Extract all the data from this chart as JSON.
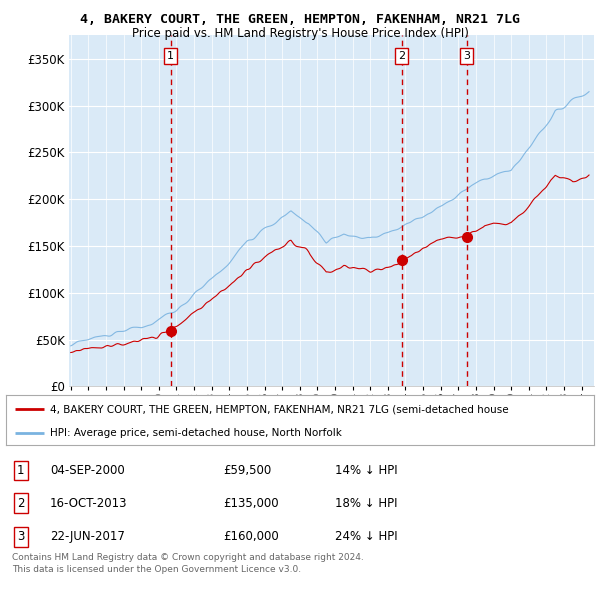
{
  "title": "4, BAKERY COURT, THE GREEN, HEMPTON, FAKENHAM, NR21 7LG",
  "subtitle": "Price paid vs. HM Land Registry's House Price Index (HPI)",
  "ylim": [
    0,
    375000
  ],
  "yticks": [
    0,
    50000,
    100000,
    150000,
    200000,
    250000,
    300000,
    350000
  ],
  "xlim_start": 1994.9,
  "xlim_end": 2024.7,
  "plot_bg_color": "#daeaf7",
  "fig_bg_color": "#ffffff",
  "grid_color": "#ffffff",
  "hpi_color": "#7ab3e0",
  "property_color": "#cc0000",
  "sale_line_color": "#cc0000",
  "sales": [
    {
      "num": 1,
      "year": 2000.67,
      "price": 59500,
      "date": "04-SEP-2000",
      "pct": "14%",
      "label": "£59,500"
    },
    {
      "num": 2,
      "year": 2013.79,
      "price": 135000,
      "date": "16-OCT-2013",
      "pct": "18%",
      "label": "£135,000"
    },
    {
      "num": 3,
      "year": 2017.47,
      "price": 160000,
      "date": "22-JUN-2017",
      "pct": "24%",
      "label": "£160,000"
    }
  ],
  "legend_property": "4, BAKERY COURT, THE GREEN, HEMPTON, FAKENHAM, NR21 7LG (semi-detached house",
  "legend_hpi": "HPI: Average price, semi-detached house, North Norfolk",
  "footer1": "Contains HM Land Registry data © Crown copyright and database right 2024.",
  "footer2": "This data is licensed under the Open Government Licence v3.0."
}
